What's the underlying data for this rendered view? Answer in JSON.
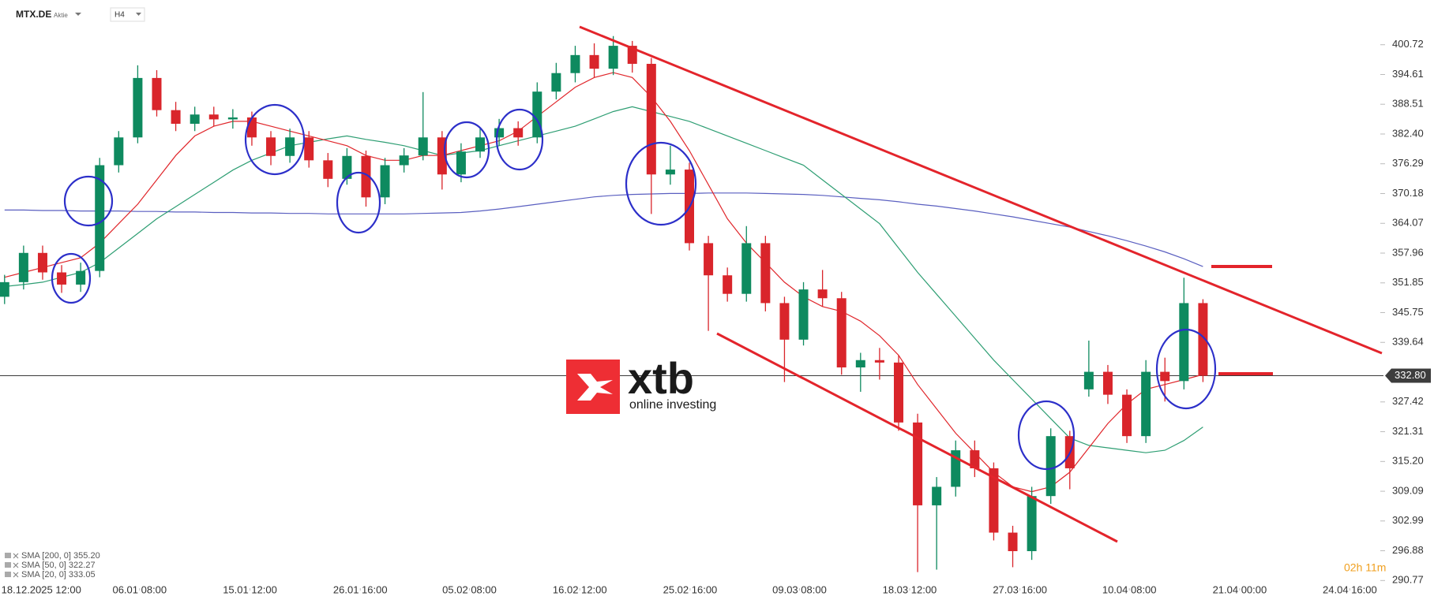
{
  "chart_data": {
    "type": "candlestick",
    "title": "MTX.DE",
    "subtitle": "Aktie",
    "timeframe": "H4",
    "timer": "02h 11m",
    "logo": {
      "brand": "xtb",
      "tagline": "online investing"
    },
    "up_color": "#0e8a5f",
    "down_color": "#d9252b",
    "xlim": [
      -0.24,
      72.24
    ],
    "ylim": [
      289.2,
      409.9
    ],
    "xticks": [
      {
        "value": 1.93,
        "label": "18.12.2025 12:00"
      },
      {
        "value": 7.1,
        "label": "06.01 08:00"
      },
      {
        "value": 12.9,
        "label": "15.01 12:00"
      },
      {
        "value": 18.7,
        "label": "26.01 16:00"
      },
      {
        "value": 24.44,
        "label": "05.02 08:00"
      },
      {
        "value": 30.24,
        "label": "16.02 12:00"
      },
      {
        "value": 36.04,
        "label": "25.02 16:00"
      },
      {
        "value": 41.79,
        "label": "09.03 08:00"
      },
      {
        "value": 47.58,
        "label": "18.03 12:00"
      },
      {
        "value": 53.38,
        "label": "27.03 16:00"
      },
      {
        "value": 59.13,
        "label": "10.04 08:00"
      },
      {
        "value": 64.93,
        "label": "21.04 00:00"
      },
      {
        "value": 70.72,
        "label": "24.04 16:00"
      }
    ],
    "yticks": [
      290.77,
      296.88,
      302.99,
      309.09,
      {
        "value": 315.2,
        "label": "315.20"
      },
      321.31,
      327.42,
      339.64,
      345.75,
      351.85,
      357.96,
      364.07,
      370.18,
      376.29,
      {
        "value": 382.4,
        "label": "382.40"
      },
      388.51,
      394.61,
      400.72
    ],
    "last_price": {
      "value": 332.8,
      "label": "332.80"
    },
    "candles": {
      "open": [
        349,
        352,
        358,
        354,
        351.5,
        354.3,
        376,
        381.7,
        393.9,
        387.3,
        384.5,
        386.4,
        385.4,
        385.8,
        381.7,
        377.9,
        381.7,
        377,
        373.2,
        377.9,
        369.4,
        376,
        378,
        381.7,
        374.1,
        378.8,
        381.7,
        383.6,
        381.7,
        391.1,
        394.9,
        398.6,
        395.8,
        400.5,
        396.8,
        374.1,
        375.1,
        360,
        353.4,
        349.6,
        360,
        347.7,
        340.2,
        350.5,
        348.7,
        334.5,
        336,
        335.5,
        323.2,
        306.2,
        310,
        317.5,
        313.8,
        300.6,
        296.8,
        308.1,
        320.4,
        330,
        333.6,
        328.9,
        320.4,
        333.6,
        331.7,
        347.7
      ],
      "high": [
        353.5,
        359.5,
        359.5,
        355.5,
        356,
        377.5,
        383,
        396.5,
        395.5,
        389,
        388,
        388,
        387.5,
        387,
        383,
        383.5,
        383,
        378.5,
        379.5,
        379,
        377.5,
        379.5,
        391,
        383,
        380.5,
        383.5,
        385.5,
        385,
        393,
        397,
        400.5,
        401,
        402.5,
        401.5,
        398,
        380,
        376.5,
        361.5,
        355,
        363.5,
        361.5,
        349,
        352,
        354.5,
        350,
        337.5,
        338.5,
        337,
        325,
        312,
        319.5,
        319.5,
        315,
        302,
        310,
        322,
        321.5,
        340,
        335,
        330,
        336,
        336.5,
        352.9,
        348.5
      ],
      "low": [
        347.5,
        350.5,
        352.5,
        349.8,
        350,
        353,
        374.5,
        380.5,
        386,
        383,
        383,
        384,
        383.5,
        380,
        376,
        376.5,
        375.5,
        371.5,
        372,
        367.5,
        368,
        374.5,
        377,
        371,
        372.5,
        377.5,
        380,
        380,
        380.5,
        389.5,
        393,
        394,
        394.5,
        395,
        366,
        372,
        358.5,
        342,
        348,
        348,
        346,
        331.5,
        339,
        347,
        333,
        329.5,
        332,
        321.5,
        292.5,
        293,
        308,
        312,
        299,
        293.5,
        295,
        306.5,
        309.5,
        328.5,
        327,
        319,
        319,
        327.5,
        330,
        331.5
      ],
      "close": [
        352,
        358,
        354,
        351.5,
        354.3,
        376,
        381.7,
        393.9,
        387.3,
        384.5,
        386.4,
        385.4,
        385.8,
        381.7,
        377.9,
        381.7,
        377,
        373.2,
        377.9,
        369.4,
        376,
        378,
        381.7,
        374.1,
        378.8,
        381.7,
        383.6,
        381.7,
        391.1,
        394.9,
        398.6,
        395.8,
        400.5,
        396.8,
        374.1,
        375.1,
        360,
        353.4,
        349.6,
        360,
        347.7,
        340.2,
        350.5,
        348.7,
        334.5,
        336,
        335.5,
        323.2,
        306.2,
        310,
        317.5,
        313.8,
        300.6,
        296.8,
        308.1,
        320.4,
        313.8,
        333.6,
        328.9,
        320.4,
        333.6,
        331.7,
        347.7,
        332.8
      ]
    },
    "series": [
      {
        "name": "SMA [200, 0] 355.20",
        "color": "#5a5fc0",
        "values": [
          366.8,
          366.8,
          366.7,
          366.7,
          366.6,
          366.6,
          366.6,
          366.5,
          366.5,
          366.4,
          366.4,
          366.3,
          366.3,
          366.2,
          366.2,
          366.1,
          366.1,
          366.0,
          366.0,
          366.0,
          366.0,
          366.0,
          366.1,
          366.2,
          366.3,
          366.6,
          367.0,
          367.5,
          368.0,
          368.5,
          369.0,
          369.5,
          369.8,
          370.0,
          370.1,
          370.2,
          370.2,
          370.3,
          370.3,
          370.3,
          370.2,
          370.1,
          370.0,
          369.8,
          369.5,
          369.2,
          368.9,
          368.5,
          368.0,
          367.6,
          367.1,
          366.6,
          366.0,
          365.4,
          364.7,
          364.0,
          363.3,
          362.4,
          361.5,
          360.5,
          359.4,
          358.2,
          356.8,
          355.2
        ]
      },
      {
        "name": "SMA [50, 0] 322.27",
        "color": "#2e9e73",
        "values": [
          351.1,
          351.5,
          352,
          353,
          354,
          356,
          359,
          362,
          365,
          367.5,
          370,
          372.5,
          375,
          377,
          378.5,
          380,
          380.7,
          381.4,
          382,
          381.3,
          380.7,
          380,
          379,
          378,
          378.5,
          379,
          380,
          381,
          382,
          383,
          384,
          385.5,
          387,
          388,
          387,
          386,
          385,
          383.5,
          382,
          380.5,
          379,
          377.5,
          376,
          373,
          370,
          367,
          364,
          359,
          354,
          349.5,
          345,
          340.5,
          336,
          332,
          328,
          324,
          320,
          318.5,
          318,
          317.5,
          317,
          317.5,
          319.5,
          322.27
        ]
      },
      {
        "name": "SMA [20, 0] 333.05",
        "color": "#e0262b",
        "values": [
          353,
          354,
          355,
          356,
          357,
          360,
          364,
          368,
          373,
          378,
          382,
          384,
          385,
          385,
          384,
          383,
          382,
          381,
          380,
          378,
          377,
          377,
          378,
          378,
          379,
          380,
          381,
          383,
          386,
          389,
          392,
          394,
          395,
          394,
          390,
          385,
          379,
          372,
          365,
          360,
          356,
          352,
          349,
          347,
          346,
          344,
          341,
          337,
          331,
          326,
          321,
          317,
          313,
          310,
          309,
          310,
          313,
          318,
          323,
          327,
          330,
          331,
          332,
          333.05
        ]
      }
    ]
  }
}
